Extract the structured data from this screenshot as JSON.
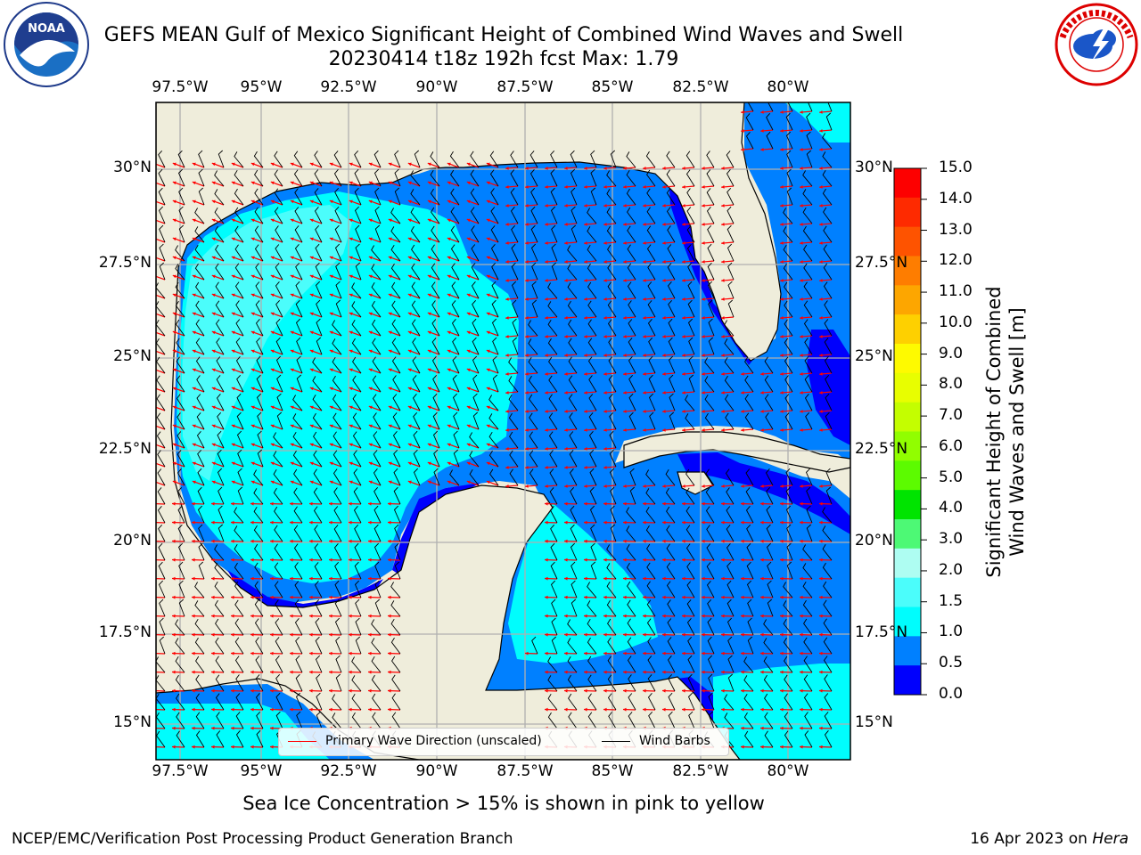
{
  "title_line1": "GEFS MEAN Gulf of Mexico Significant Height of Combined Wind Waves and Swell",
  "title_line2": "20230414 t18z 192h fcst   Max: 1.79",
  "lon_labels": [
    "97.5°W",
    "95°W",
    "92.5°W",
    "90°W",
    "87.5°W",
    "85°W",
    "82.5°W",
    "80°W"
  ],
  "lat_labels": [
    "30°N",
    "27.5°N",
    "25°N",
    "22.5°N",
    "20°N",
    "17.5°N",
    "15°N"
  ],
  "colorbar": {
    "label_line1": "Significant Height of Combined",
    "label_line2": "Wind Waves and Swell [m]",
    "ticks": [
      "15.0",
      "14.0",
      "13.0",
      "12.0",
      "11.0",
      "10.0",
      "9.0",
      "8.0",
      "7.0",
      "6.0",
      "5.0",
      "4.0",
      "3.0",
      "2.0",
      "1.5",
      "1.0",
      "0.5",
      "0.0"
    ],
    "colors": [
      "#fd0000",
      "#fe2a00",
      "#fe5300",
      "#fe7d00",
      "#fda600",
      "#fed000",
      "#fefa00",
      "#e8fe00",
      "#c4fe00",
      "#91fe00",
      "#5cfb00",
      "#00e400",
      "#4df975",
      "#aefdf2",
      "#4bfdfb",
      "#00fdfd",
      "#0080ff",
      "#0000fd"
    ]
  },
  "legend": {
    "wave_direction": "Primary Wave Direction (unscaled)",
    "wind_barbs": "Wind Barbs",
    "wave_color": "#ff0000",
    "barb_color": "#000000"
  },
  "ice_note": "Sea Ice Concentration > 15% is shown in pink to yellow",
  "footer_left": "NCEP/EMC/Verification Post Processing Product Generation Branch",
  "footer_date": "16 Apr 2023 on ",
  "footer_machine": "Hera",
  "logos": {
    "left": "noaa-logo",
    "right": "national-weather-service-logo"
  },
  "colors": {
    "land": "#efeddb",
    "grid": "#b0b0b0",
    "wave_arrow": "#ff0000",
    "wind_barb": "#000000"
  }
}
